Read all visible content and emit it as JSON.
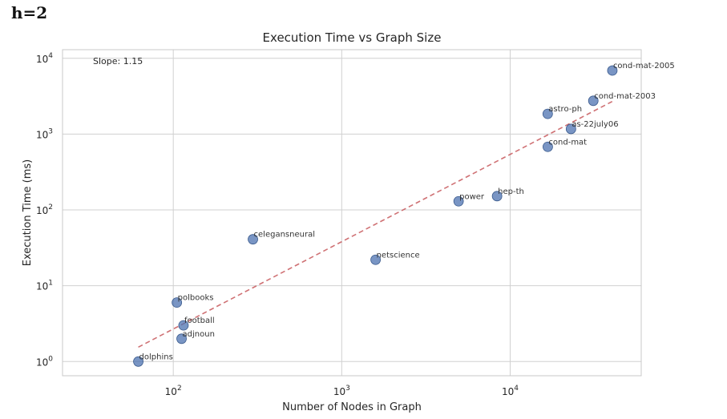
{
  "page": {
    "heading": "h=2"
  },
  "chart_data": {
    "type": "scatter",
    "title": "Execution Time vs Graph Size",
    "xlabel": "Number of Nodes in Graph",
    "ylabel": "Execution Time (ms)",
    "xscale": "log",
    "yscale": "log",
    "xlim": [
      22,
      60000
    ],
    "ylim": [
      0.65,
      13000
    ],
    "grid": true,
    "xticks": [
      {
        "value": 100,
        "base": "10",
        "exp": "2"
      },
      {
        "value": 1000,
        "base": "10",
        "exp": "3"
      },
      {
        "value": 10000,
        "base": "10",
        "exp": "4"
      }
    ],
    "yticks": [
      {
        "value": 1,
        "base": "10",
        "exp": "0"
      },
      {
        "value": 10,
        "base": "10",
        "exp": "1"
      },
      {
        "value": 100,
        "base": "10",
        "exp": "2"
      },
      {
        "value": 1000,
        "base": "10",
        "exp": "3"
      },
      {
        "value": 10000,
        "base": "10",
        "exp": "4"
      }
    ],
    "annotation": "Slope: 1.15",
    "points": [
      {
        "label": "dolphins",
        "x": 62,
        "y": 1.0
      },
      {
        "label": "polbooks",
        "x": 105,
        "y": 6.0
      },
      {
        "label": "football",
        "x": 115,
        "y": 3.0
      },
      {
        "label": "adjnoun",
        "x": 112,
        "y": 2.0
      },
      {
        "label": "celegansneural",
        "x": 297,
        "y": 41
      },
      {
        "label": "netscience",
        "x": 1589,
        "y": 22
      },
      {
        "label": "power",
        "x": 4941,
        "y": 130
      },
      {
        "label": "hep-th",
        "x": 8361,
        "y": 152
      },
      {
        "label": "astro-ph",
        "x": 16706,
        "y": 1850
      },
      {
        "label": "cond-mat",
        "x": 16726,
        "y": 680
      },
      {
        "label": "as-22july06",
        "x": 22963,
        "y": 1170
      },
      {
        "label": "cond-mat-2003",
        "x": 31163,
        "y": 2750
      },
      {
        "label": "cond-mat-2005",
        "x": 40421,
        "y": 6900
      }
    ],
    "fit_line": {
      "x": [
        62,
        40421
      ],
      "y": [
        1.55,
        2700
      ]
    },
    "colors": {
      "points": "#4c72b0",
      "fit_line": "#c44e52",
      "grid": "#d0d0d0",
      "axes": "#c8c8c8",
      "text": "#262626"
    }
  }
}
